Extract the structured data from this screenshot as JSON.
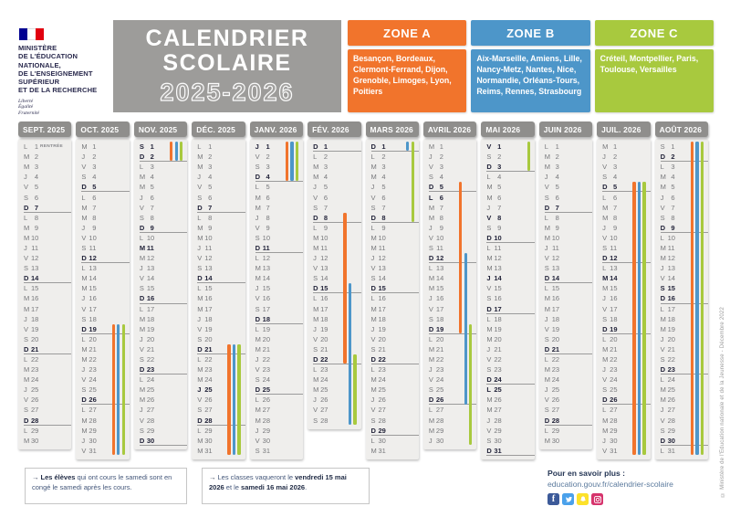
{
  "ministry": {
    "lines": [
      "MINISTÈRE",
      "DE L'ÉDUCATION",
      "NATIONALE,",
      "DE L'ENSEIGNEMENT",
      "SUPÉRIEUR",
      "ET DE LA RECHERCHE"
    ],
    "motto": [
      "Liberté",
      "Égalité",
      "Fraternité"
    ]
  },
  "title": {
    "line1": "CALENDRIER",
    "line2": "SCOLAIRE",
    "years": "2025-2026"
  },
  "zones": [
    {
      "label": "ZONE A",
      "color": "#f1742c",
      "cities": "Besançon, Bordeaux, Clermont-Ferrand, Dijon, Grenoble, Limoges, Lyon, Poitiers"
    },
    {
      "label": "ZONE B",
      "color": "#4d96c9",
      "cities": "Aix-Marseille, Amiens, Lille, Nancy-Metz, Nantes, Nice, Normandie, Orléans-Tours, Reims, Rennes, Strasbourg"
    },
    {
      "label": "ZONE C",
      "color": "#a8c93e",
      "cities": "Créteil, Montpellier, Paris, Toulouse, Versailles"
    }
  ],
  "day_letters": [
    "L",
    "M",
    "M",
    "J",
    "V",
    "S",
    "D"
  ],
  "months": [
    {
      "label": "SEPT. 2025",
      "first": 0,
      "days": 30,
      "bold": [],
      "notes": {
        "1": "RENTRÉE"
      },
      "bars": {}
    },
    {
      "label": "OCT. 2025",
      "first": 2,
      "days": 31,
      "bold": [],
      "bars": {
        "A": [
          19,
          31
        ],
        "B": [
          19,
          31
        ],
        "C": [
          19,
          31
        ]
      }
    },
    {
      "label": "NOV. 2025",
      "first": 5,
      "days": 30,
      "bold": [
        1,
        11
      ],
      "bars": {
        "A": [
          1,
          2
        ],
        "B": [
          1,
          2
        ],
        "C": [
          1,
          2
        ]
      }
    },
    {
      "label": "DÉC. 2025",
      "first": 0,
      "days": 31,
      "bold": [
        25
      ],
      "bars": {
        "A": [
          21,
          31
        ],
        "B": [
          21,
          31
        ],
        "C": [
          21,
          31
        ]
      }
    },
    {
      "label": "JANV. 2026",
      "first": 3,
      "days": 31,
      "bold": [
        1
      ],
      "bars": {
        "A": [
          1,
          4
        ],
        "B": [
          1,
          4
        ],
        "C": [
          1,
          4
        ]
      }
    },
    {
      "label": "FÉV. 2026",
      "first": 6,
      "days": 28,
      "bold": [],
      "bars": {
        "A": [
          8,
          22
        ],
        "B": [
          15,
          28
        ],
        "C": [
          22,
          28
        ]
      }
    },
    {
      "label": "MARS 2026",
      "first": 6,
      "days": 31,
      "bold": [],
      "bars": {
        "B": [
          1,
          1
        ],
        "C": [
          1,
          8
        ]
      }
    },
    {
      "label": "AVRIL 2026",
      "first": 2,
      "days": 30,
      "bold": [
        6
      ],
      "bars": {
        "A": [
          5,
          19
        ],
        "B": [
          12,
          26
        ],
        "C": [
          19,
          30
        ]
      }
    },
    {
      "label": "MAI 2026",
      "first": 4,
      "days": 31,
      "bold": [
        1,
        8,
        14,
        25
      ],
      "bars": {
        "C": [
          1,
          3
        ]
      }
    },
    {
      "label": "JUIN 2026",
      "first": 0,
      "days": 30,
      "bold": [],
      "bars": {}
    },
    {
      "label": "JUIL. 2026",
      "first": 2,
      "days": 31,
      "bold": [
        14
      ],
      "bars": {
        "A": [
          5,
          31
        ],
        "B": [
          5,
          31
        ],
        "C": [
          5,
          31
        ]
      }
    },
    {
      "label": "AOÛT 2026",
      "first": 5,
      "days": 31,
      "bold": [
        15
      ],
      "bars": {
        "A": [
          1,
          31
        ],
        "B": [
          1,
          31
        ],
        "C": [
          1,
          31
        ]
      }
    }
  ],
  "notes": [
    {
      "parts": [
        {
          "t": "Les élèves",
          "b": true
        },
        {
          "t": " qui ont cours le samedi sont en congé le samedi après les cours.",
          "b": false
        }
      ]
    },
    {
      "parts": [
        {
          "t": "Les classes vaqueront le ",
          "b": false
        },
        {
          "t": "vendredi 15 mai 2026",
          "b": true
        },
        {
          "t": " et le ",
          "b": false
        },
        {
          "t": "samedi 16 mai 2026",
          "b": true
        },
        {
          "t": ".",
          "b": false
        }
      ]
    }
  ],
  "more_info": {
    "label": "Pour en savoir plus :",
    "link": "education.gouv.fr/calendrier-scolaire"
  },
  "social": [
    "facebook",
    "twitter",
    "snapchat",
    "instagram"
  ],
  "copyright": "© Ministère de l'Éducation nationale et de la Jeunesse - Décembre 2022",
  "colors": {
    "zoneA": "#f1742c",
    "zoneB": "#4d96c9",
    "zoneC": "#a8c93e",
    "flag_blue": "#000091",
    "flag_red": "#e1000f"
  }
}
